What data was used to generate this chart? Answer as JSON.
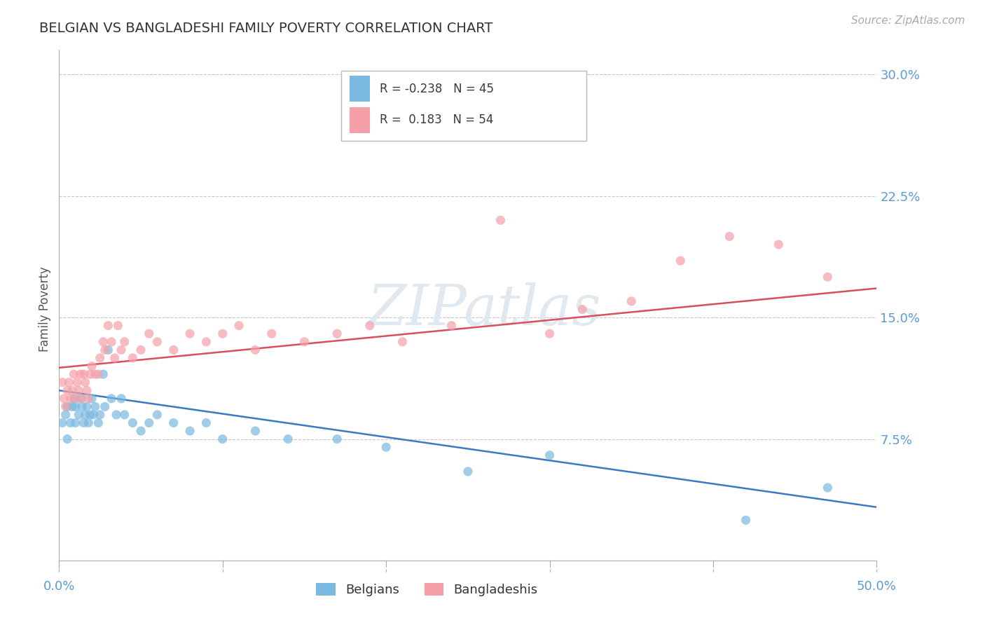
{
  "title": "BELGIAN VS BANGLADESHI FAMILY POVERTY CORRELATION CHART",
  "source": "Source: ZipAtlas.com",
  "ylabel": "Family Poverty",
  "yticks": [
    0.0,
    0.075,
    0.15,
    0.225,
    0.3
  ],
  "ytick_labels": [
    "",
    "7.5%",
    "15.0%",
    "22.5%",
    "30.0%"
  ],
  "xlim": [
    0.0,
    0.5
  ],
  "ylim": [
    -0.005,
    0.315
  ],
  "watermark": "ZIPatlas",
  "legend_label1": "Belgians",
  "legend_label2": "Bangladeshis",
  "blue_color": "#7ab9e0",
  "pink_color": "#f5a0a8",
  "blue_line_color": "#3a7abf",
  "pink_line_color": "#d94f5c",
  "title_color": "#333333",
  "axis_color": "#5b9bd5",
  "background_color": "#ffffff",
  "blue_line_x0": 0.0,
  "blue_line_y0": 0.105,
  "blue_line_x1": 0.5,
  "blue_line_y1": 0.033,
  "pink_line_x0": 0.0,
  "pink_line_y0": 0.119,
  "pink_line_x1": 0.5,
  "pink_line_y1": 0.168,
  "belgians_x": [
    0.002,
    0.004,
    0.005,
    0.005,
    0.007,
    0.008,
    0.009,
    0.01,
    0.01,
    0.012,
    0.013,
    0.014,
    0.015,
    0.016,
    0.017,
    0.018,
    0.019,
    0.02,
    0.021,
    0.022,
    0.024,
    0.025,
    0.027,
    0.028,
    0.03,
    0.032,
    0.035,
    0.038,
    0.04,
    0.045,
    0.05,
    0.055,
    0.06,
    0.07,
    0.08,
    0.09,
    0.1,
    0.12,
    0.14,
    0.17,
    0.2,
    0.25,
    0.3,
    0.42,
    0.47
  ],
  "belgians_y": [
    0.085,
    0.09,
    0.075,
    0.095,
    0.085,
    0.095,
    0.1,
    0.095,
    0.085,
    0.09,
    0.1,
    0.095,
    0.085,
    0.09,
    0.095,
    0.085,
    0.09,
    0.1,
    0.09,
    0.095,
    0.085,
    0.09,
    0.115,
    0.095,
    0.13,
    0.1,
    0.09,
    0.1,
    0.09,
    0.085,
    0.08,
    0.085,
    0.09,
    0.085,
    0.08,
    0.085,
    0.075,
    0.08,
    0.075,
    0.075,
    0.07,
    0.055,
    0.065,
    0.025,
    0.045
  ],
  "bangladeshis_x": [
    0.002,
    0.003,
    0.004,
    0.005,
    0.006,
    0.007,
    0.008,
    0.009,
    0.01,
    0.011,
    0.012,
    0.013,
    0.014,
    0.015,
    0.016,
    0.017,
    0.018,
    0.019,
    0.02,
    0.022,
    0.024,
    0.025,
    0.027,
    0.028,
    0.03,
    0.032,
    0.034,
    0.036,
    0.038,
    0.04,
    0.045,
    0.05,
    0.055,
    0.06,
    0.07,
    0.08,
    0.09,
    0.1,
    0.11,
    0.12,
    0.13,
    0.15,
    0.17,
    0.19,
    0.21,
    0.24,
    0.27,
    0.3,
    0.32,
    0.35,
    0.38,
    0.41,
    0.44,
    0.47
  ],
  "bangladeshis_y": [
    0.11,
    0.1,
    0.095,
    0.105,
    0.11,
    0.1,
    0.105,
    0.115,
    0.1,
    0.11,
    0.105,
    0.115,
    0.1,
    0.115,
    0.11,
    0.105,
    0.1,
    0.115,
    0.12,
    0.115,
    0.115,
    0.125,
    0.135,
    0.13,
    0.145,
    0.135,
    0.125,
    0.145,
    0.13,
    0.135,
    0.125,
    0.13,
    0.14,
    0.135,
    0.13,
    0.14,
    0.135,
    0.14,
    0.145,
    0.13,
    0.14,
    0.135,
    0.14,
    0.145,
    0.135,
    0.145,
    0.21,
    0.14,
    0.155,
    0.16,
    0.185,
    0.2,
    0.195,
    0.175
  ]
}
